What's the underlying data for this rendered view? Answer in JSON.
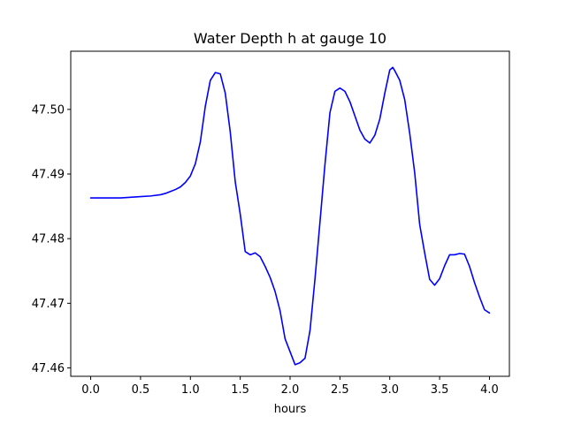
{
  "chart_data": {
    "type": "line",
    "title": "Water Depth h at gauge 10",
    "xlabel": "hours",
    "ylabel": "",
    "xlim": [
      -0.2,
      4.2
    ],
    "ylim": [
      47.4587,
      47.509
    ],
    "xticks": [
      0.0,
      0.5,
      1.0,
      1.5,
      2.0,
      2.5,
      3.0,
      3.5,
      4.0
    ],
    "xtick_labels": [
      "0.0",
      "0.5",
      "1.0",
      "1.5",
      "2.0",
      "2.5",
      "3.0",
      "3.5",
      "4.0"
    ],
    "yticks": [
      47.46,
      47.47,
      47.48,
      47.49,
      47.5
    ],
    "ytick_labels": [
      "47.46",
      "47.47",
      "47.48",
      "47.49",
      "47.50"
    ],
    "grid": false,
    "legend": "none",
    "series": [
      {
        "color": "#0000ff",
        "x": [
          0.0,
          0.1,
          0.2,
          0.3,
          0.4,
          0.5,
          0.6,
          0.7,
          0.75,
          0.8,
          0.85,
          0.9,
          0.95,
          1.0,
          1.05,
          1.1,
          1.15,
          1.2,
          1.25,
          1.3,
          1.35,
          1.4,
          1.45,
          1.5,
          1.55,
          1.6,
          1.65,
          1.7,
          1.75,
          1.8,
          1.85,
          1.9,
          1.95,
          2.0,
          2.05,
          2.1,
          2.15,
          2.2,
          2.25,
          2.3,
          2.35,
          2.4,
          2.45,
          2.5,
          2.55,
          2.6,
          2.65,
          2.7,
          2.75,
          2.8,
          2.85,
          2.9,
          2.95,
          3.0,
          3.03,
          3.05,
          3.1,
          3.15,
          3.2,
          3.25,
          3.3,
          3.35,
          3.4,
          3.45,
          3.5,
          3.55,
          3.6,
          3.65,
          3.7,
          3.75,
          3.8,
          3.85,
          3.9,
          3.95,
          4.0
        ],
        "y": [
          47.4863,
          47.4863,
          47.4863,
          47.4863,
          47.4864,
          47.4865,
          47.4866,
          47.4868,
          47.487,
          47.4873,
          47.4876,
          47.488,
          47.4887,
          47.4897,
          47.4916,
          47.495,
          47.5005,
          47.5045,
          47.5057,
          47.5055,
          47.5025,
          47.4965,
          47.4888,
          47.4838,
          47.478,
          47.4775,
          47.4778,
          47.4772,
          47.4757,
          47.474,
          47.4718,
          47.4688,
          47.4645,
          47.4625,
          47.4605,
          47.4608,
          47.4615,
          47.4658,
          47.4738,
          47.4826,
          47.4915,
          47.4995,
          47.5028,
          47.5033,
          47.5028,
          47.5012,
          47.499,
          47.4968,
          47.4954,
          47.4948,
          47.496,
          47.4985,
          47.5025,
          47.5061,
          47.5065,
          47.506,
          47.5045,
          47.5015,
          47.4963,
          47.4902,
          47.4822,
          47.4778,
          47.4737,
          47.4728,
          47.4738,
          47.4758,
          47.4775,
          47.4775,
          47.4777,
          47.4776,
          47.4757,
          47.4732,
          47.471,
          47.469,
          47.4685
        ]
      }
    ]
  }
}
